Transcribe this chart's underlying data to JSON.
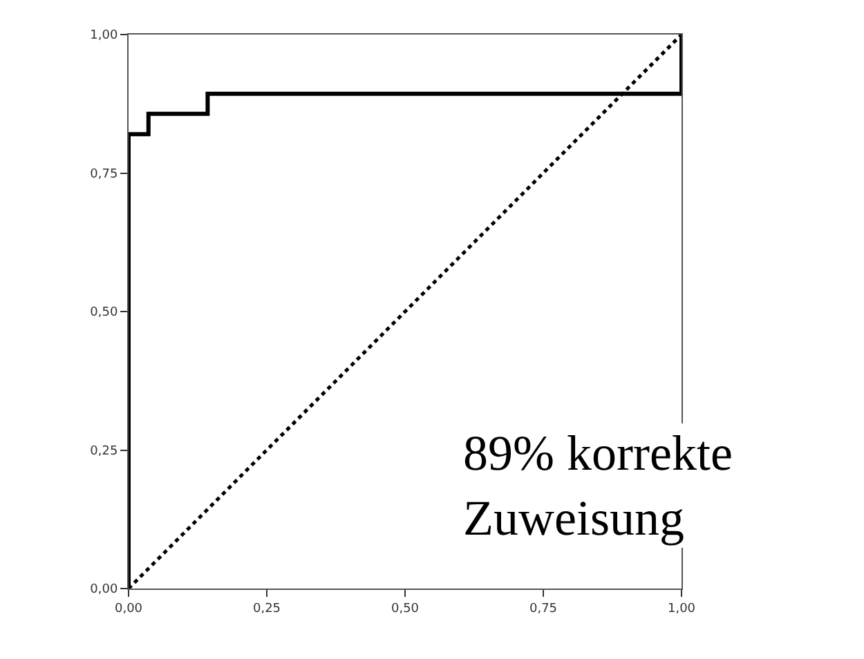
{
  "chart_data": {
    "type": "line",
    "series": [
      {
        "color": "#000000",
        "line_style": "solid",
        "x": [
          0,
          0,
          0.036,
          0.036,
          0.143,
          0.143,
          1,
          1
        ],
        "values": [
          0,
          0.82,
          0.82,
          0.857,
          0.857,
          0.893,
          0.893,
          1
        ]
      },
      {
        "color": "#000000",
        "line_style": "dotted",
        "x": [
          0,
          1
        ],
        "values": [
          0,
          1
        ]
      }
    ],
    "xlim": [
      0,
      1
    ],
    "ylim": [
      0,
      1
    ],
    "xticks": [
      {
        "value": 0,
        "label": "0,00"
      },
      {
        "value": 0.25,
        "label": "0,25"
      },
      {
        "value": 0.5,
        "label": "0,50"
      },
      {
        "value": 0.75,
        "label": "0,75"
      },
      {
        "value": 1,
        "label": "1,00"
      }
    ],
    "yticks": [
      {
        "value": 0,
        "label": "0,00"
      },
      {
        "value": 0.25,
        "label": "0,25"
      },
      {
        "value": 0.5,
        "label": "0,50"
      },
      {
        "value": 0.75,
        "label": "0,75"
      },
      {
        "value": 1,
        "label": "1,00"
      }
    ],
    "marker": "none",
    "annotations": [
      "89% korrekte\nZuweisung"
    ]
  }
}
